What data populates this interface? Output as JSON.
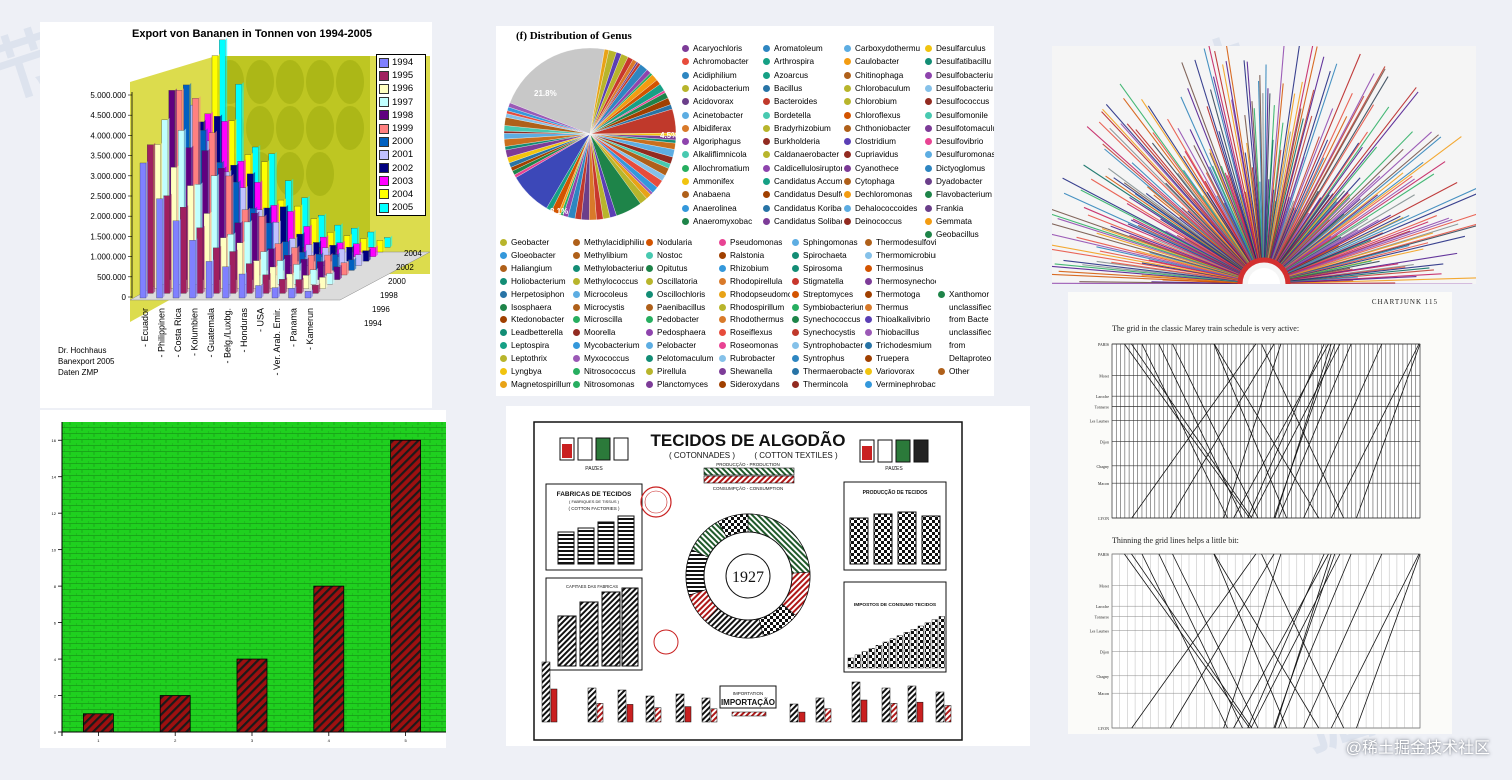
{
  "watermark": "@稀土掘金技术社区",
  "colors": {
    "page_bg": "#eef0f6",
    "green_bg": "#1fd01f",
    "bar_red": "#9d1010",
    "pie_gray": "#c8c8c8"
  },
  "banana": {
    "title": "Export von Bananen in Tonnen von 1994-2005",
    "yticks": [
      "5.000.000",
      "4.500.000",
      "4.000.000",
      "3.500.000",
      "3.000.000",
      "2.500.000",
      "2.000.000",
      "1.500.000",
      "1.000.000",
      "500.000",
      "0"
    ],
    "countries": [
      "- Ecuador",
      "- Philippinen",
      "- Costa Rica",
      "- Kolumbien",
      "- Guatemala",
      "- Belg./Luxbg.",
      "- Honduras",
      "- USA",
      "- Ver. Arab. Emir.",
      "- Panama",
      "- Kamerun"
    ],
    "depth_labels": [
      "2004",
      "2002",
      "2000",
      "1998",
      "1996",
      "1994"
    ],
    "legend": [
      {
        "year": "1994",
        "color": "#8080ff"
      },
      {
        "year": "1995",
        "color": "#a02060"
      },
      {
        "year": "1996",
        "color": "#ffffc0"
      },
      {
        "year": "1997",
        "color": "#c0ffff"
      },
      {
        "year": "1998",
        "color": "#600080"
      },
      {
        "year": "1999",
        "color": "#ff8080"
      },
      {
        "year": "2000",
        "color": "#0060c0"
      },
      {
        "year": "2001",
        "color": "#c0c0ff"
      },
      {
        "year": "2002",
        "color": "#000080"
      },
      {
        "year": "2003",
        "color": "#ff00ff"
      },
      {
        "year": "2004",
        "color": "#ffff00"
      },
      {
        "year": "2005",
        "color": "#00ffff"
      }
    ],
    "credit": [
      "Dr. Hochhaus",
      "Banexport 2005",
      "Daten ZMP"
    ]
  },
  "genus": {
    "title": "(f) Distribution of Genus",
    "pie_labels": [
      "21.8%",
      "4.5%",
      "8.1%",
      "5%"
    ],
    "legend_top": [
      [
        "Acaryochloris",
        "Achromobacter",
        "Acidiphilium",
        "Acidobacterium",
        "Acidovorax",
        "Acinetobacter",
        "Albidiferax",
        "Algoriphagus",
        "Alkaliflimnicola",
        "Allochromatium",
        "Ammonifex",
        "Anabaena",
        "Anaerolinea",
        "Anaeromyxobac"
      ],
      [
        "Aromatoleum",
        "Arthrospira",
        "Azoarcus",
        "Bacillus",
        "Bacteroides",
        "Bordetella",
        "Bradyrhizobium",
        "Burkholderia",
        "Caldanaerobacter",
        "Caldicellulosiruptor",
        "Candidatus Accumulib",
        "Candidatus Desulforu",
        "Candidatus Koribacter",
        "Candidatus Solibacter"
      ],
      [
        "Carboxydothermu",
        "Caulobacter",
        "Chitinophaga",
        "Chlorobaculum",
        "Chlorobium",
        "Chloroflexus",
        "Chthoniobacter",
        "Clostridium",
        "Cupriavidus",
        "Cyanothece",
        "Cytophaga",
        "Dechloromonas",
        "Dehalococcoides",
        "Deinococcus"
      ],
      [
        "Desulfarculus",
        "Desulfatibacillu",
        "Desulfobacteriu",
        "Desulfobacteriu",
        "Desulfococcus",
        "Desulfomonile",
        "Desulfotomaculu",
        "Desulfovibrio",
        "Desulfuromonas",
        "Dictyoglomus",
        "Dyadobacter",
        "Flavobacterium",
        "Frankia",
        "Gemmata",
        "Geobacillus"
      ]
    ],
    "legend_bottom": [
      [
        "Geobacter",
        "Gloeobacter",
        "Haliangium",
        "Holiobacterium",
        "Herpetosiphon",
        "Isosphaera",
        "Ktedonobacter",
        "Leadbetterella",
        "Leptospira",
        "Leptothrix",
        "Lyngbya",
        "Magnetospirillum"
      ],
      [
        "Methylacidiphilium",
        "Methylibium",
        "Methylobacterium",
        "Methylococcus",
        "Microcoleus",
        "Microcystis",
        "Microscilla",
        "Moorella",
        "Mycobacterium",
        "Myxococcus",
        "Nitrosococcus",
        "Nitrosomonas"
      ],
      [
        "Nodularia",
        "Nostoc",
        "Opitutus",
        "Oscillatoria",
        "Oscillochloris",
        "Paenibacillus",
        "Pedobacter",
        "Pedosphaera",
        "Pelobacter",
        "Pelotomaculum",
        "Pirellula",
        "Planctomyces"
      ],
      [
        "Pseudomonas",
        "Ralstonia",
        "Rhizobium",
        "Rhodopirellula",
        "Rhodopseudomc",
        "Rhodospirillum",
        "Rhodothermus",
        "Roseiflexus",
        "Roseomonas",
        "Rubrobacter",
        "Shewanella",
        "Sideroxydans"
      ],
      [
        "Sphingomonas",
        "Spirochaeta",
        "Spirosoma",
        "Stigmatella",
        "Streptomyces",
        "Symbiobacterium",
        "Synechococcus",
        "Synechocystis",
        "Syntrophobacter",
        "Syntrophus",
        "Thermaerobacter",
        "Thermincola"
      ],
      [
        "Thermodesulfovibrio",
        "Thermomicrobium",
        "Thermosinus",
        "Thermosynechococcus",
        "Thermotoga",
        "Thermus",
        "Thioalkalivibrio",
        "Thiobacillus",
        "Trichodesmium",
        "Truepera",
        "Variovorax",
        "Verminephrobacter"
      ],
      [
        "",
        "",
        "",
        "",
        "Xanthomor",
        "unclassifiec",
        "from Bacte",
        "unclassifiec",
        "from",
        "Deltaproteo",
        "Other",
        ""
      ]
    ]
  },
  "chartjunk": {
    "page_head": "CHARTJUNK   115",
    "caption1": "The grid in the classic Marey train schedule is very active:",
    "caption2": "Thinning the grid lines helps a little bit:",
    "stations": [
      "PARIS",
      "Moret",
      "Laroche",
      "Tonnerre",
      "Les Laumes",
      "Dijon",
      "Chagny",
      "Macon",
      "LYON"
    ]
  },
  "tecidos": {
    "title": "TECIDOS DE ALGODÃO",
    "subtitle_left": "( COTONNADES )",
    "subtitle_right": "( COTTON TEXTILES )",
    "production_label": "PRODUCÇÃO - PRODUCTION",
    "consumption_label": "CONSUMPÇÃO - CONSUMPTION",
    "paizes_label": "PAIZES",
    "year": "1927",
    "fabricas_title": "FABRICAS DE TECIDOS",
    "fabricas_sub1": "( FABRIQUES DE TISSUS )",
    "fabricas_sub2": "( COTTON FACTORIES )",
    "capitais_title": "CAPITAES DAS FABRICAS",
    "producao_title": "PRODUCÇÃO DE TECIDOS",
    "impostos_title": "IMPOSTOS DE CONSUMO TECIDOS",
    "importacao_title": "IMPORTAÇÃO",
    "importation_label": "IMPORTATION"
  },
  "hatched_bars": {
    "chart_data": {
      "type": "bar",
      "categories": [
        "1",
        "2",
        "3",
        "4",
        "5"
      ],
      "values": [
        1,
        2,
        4,
        8,
        16
      ],
      "ylim": [
        0,
        17
      ],
      "yticks": [
        0,
        2,
        4,
        6,
        8,
        10,
        12,
        14,
        16
      ]
    }
  }
}
